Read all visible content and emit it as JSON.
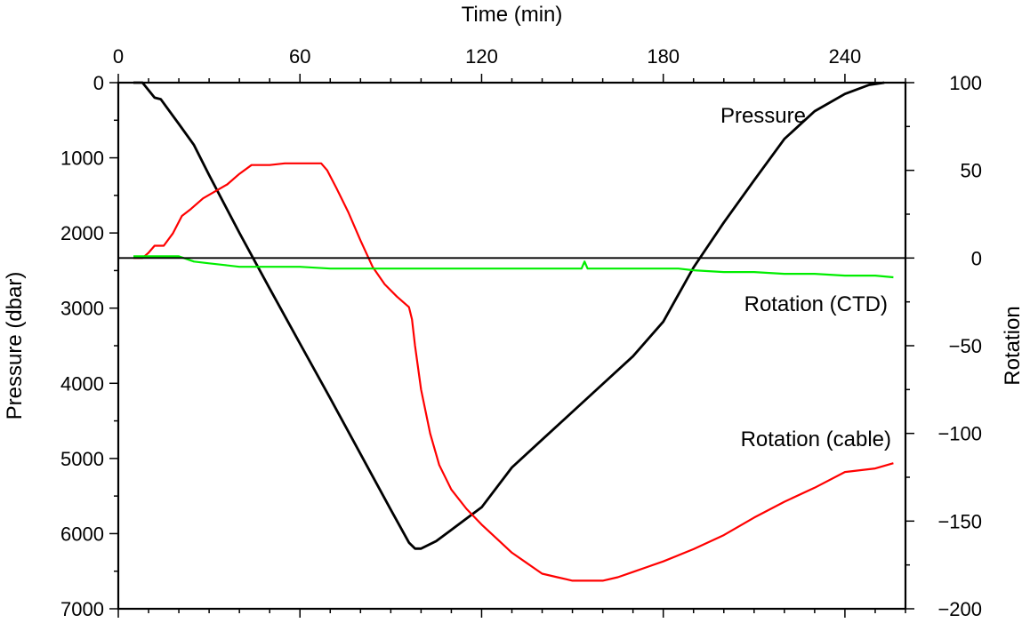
{
  "chart_data": {
    "type": "line",
    "xlabel": "Time (min)",
    "ylabel_left": "Pressure (dbar)",
    "ylabel_right": "Rotation",
    "xlim": [
      0,
      260
    ],
    "ylim_left": [
      7000,
      0
    ],
    "ylim_right": [
      -200,
      100
    ],
    "x_ticks": [
      0,
      60,
      120,
      180,
      240
    ],
    "y_left_ticks": [
      0,
      1000,
      2000,
      3000,
      4000,
      5000,
      6000,
      7000
    ],
    "y_right_ticks": [
      100,
      50,
      0,
      -50,
      -100,
      -150,
      -200
    ],
    "x_tick_labels": [
      "0",
      "60",
      "120",
      "180",
      "240"
    ],
    "y_left_tick_labels": [
      "0",
      "1000",
      "2000",
      "3000",
      "4000",
      "5000",
      "6000",
      "7000"
    ],
    "y_right_tick_labels": [
      "100",
      "50",
      "0",
      "−50",
      "−100",
      "−150",
      "−200"
    ],
    "zero_line": {
      "axis": "right",
      "value": 0
    },
    "grid": false,
    "legend": "none",
    "series": [
      {
        "name": "Pressure",
        "axis": "left",
        "color": "#000000",
        "label_pos": "upper-right",
        "x": [
          5,
          8,
          12,
          14,
          20,
          25,
          30,
          40,
          50,
          60,
          70,
          80,
          90,
          96,
          98,
          100,
          105,
          110,
          115,
          120,
          130,
          140,
          150,
          160,
          170,
          180,
          190,
          200,
          210,
          220,
          230,
          240,
          248,
          253
        ],
        "y": [
          0,
          0,
          200,
          220,
          550,
          830,
          1230,
          2000,
          2740,
          3470,
          4200,
          4940,
          5680,
          6120,
          6200,
          6200,
          6100,
          5950,
          5800,
          5650,
          5120,
          4750,
          4380,
          4010,
          3640,
          3180,
          2460,
          1860,
          1300,
          750,
          380,
          150,
          30,
          0
        ]
      },
      {
        "name": "Rotation (cable)",
        "axis": "right",
        "color": "#ff0000",
        "label_pos": "lower-right",
        "x": [
          5,
          8,
          10,
          12,
          15,
          18,
          21,
          24,
          28,
          32,
          36,
          40,
          44,
          50,
          55,
          60,
          67,
          69,
          72,
          76,
          80,
          84,
          88,
          92,
          96,
          97,
          98,
          100,
          103,
          106,
          110,
          115,
          120,
          125,
          130,
          135,
          140,
          145,
          150,
          155,
          160,
          165,
          170,
          175,
          180,
          190,
          200,
          210,
          220,
          230,
          240,
          250,
          256
        ],
        "y": [
          0,
          0,
          3,
          7,
          7,
          14,
          24,
          28,
          34,
          38,
          42,
          48,
          53,
          53,
          54,
          54,
          54,
          50,
          40,
          26,
          10,
          -5,
          -15,
          -22,
          -28,
          -35,
          -50,
          -75,
          -100,
          -118,
          -132,
          -143,
          -152,
          -160,
          -168,
          -174,
          -180,
          -182,
          -184,
          -184,
          -184,
          -182,
          -179,
          -176,
          -173,
          -166,
          -158,
          -148,
          -139,
          -131,
          -122,
          -120,
          -117
        ]
      },
      {
        "name": "Rotation (CTD)",
        "axis": "right",
        "color": "#00ee00",
        "label_pos": "middle-right",
        "x": [
          5,
          15,
          20,
          25,
          30,
          35,
          40,
          60,
          70,
          80,
          100,
          120,
          153,
          154,
          155,
          156,
          165,
          185,
          190,
          200,
          210,
          220,
          230,
          240,
          250,
          256
        ],
        "y": [
          1,
          1,
          1,
          -2,
          -3,
          -4,
          -5,
          -5,
          -6,
          -6,
          -6,
          -6,
          -6,
          -2,
          -6,
          -6,
          -6,
          -6,
          -7,
          -8,
          -8,
          -9,
          -9,
          -10,
          -10,
          -11
        ]
      }
    ]
  }
}
